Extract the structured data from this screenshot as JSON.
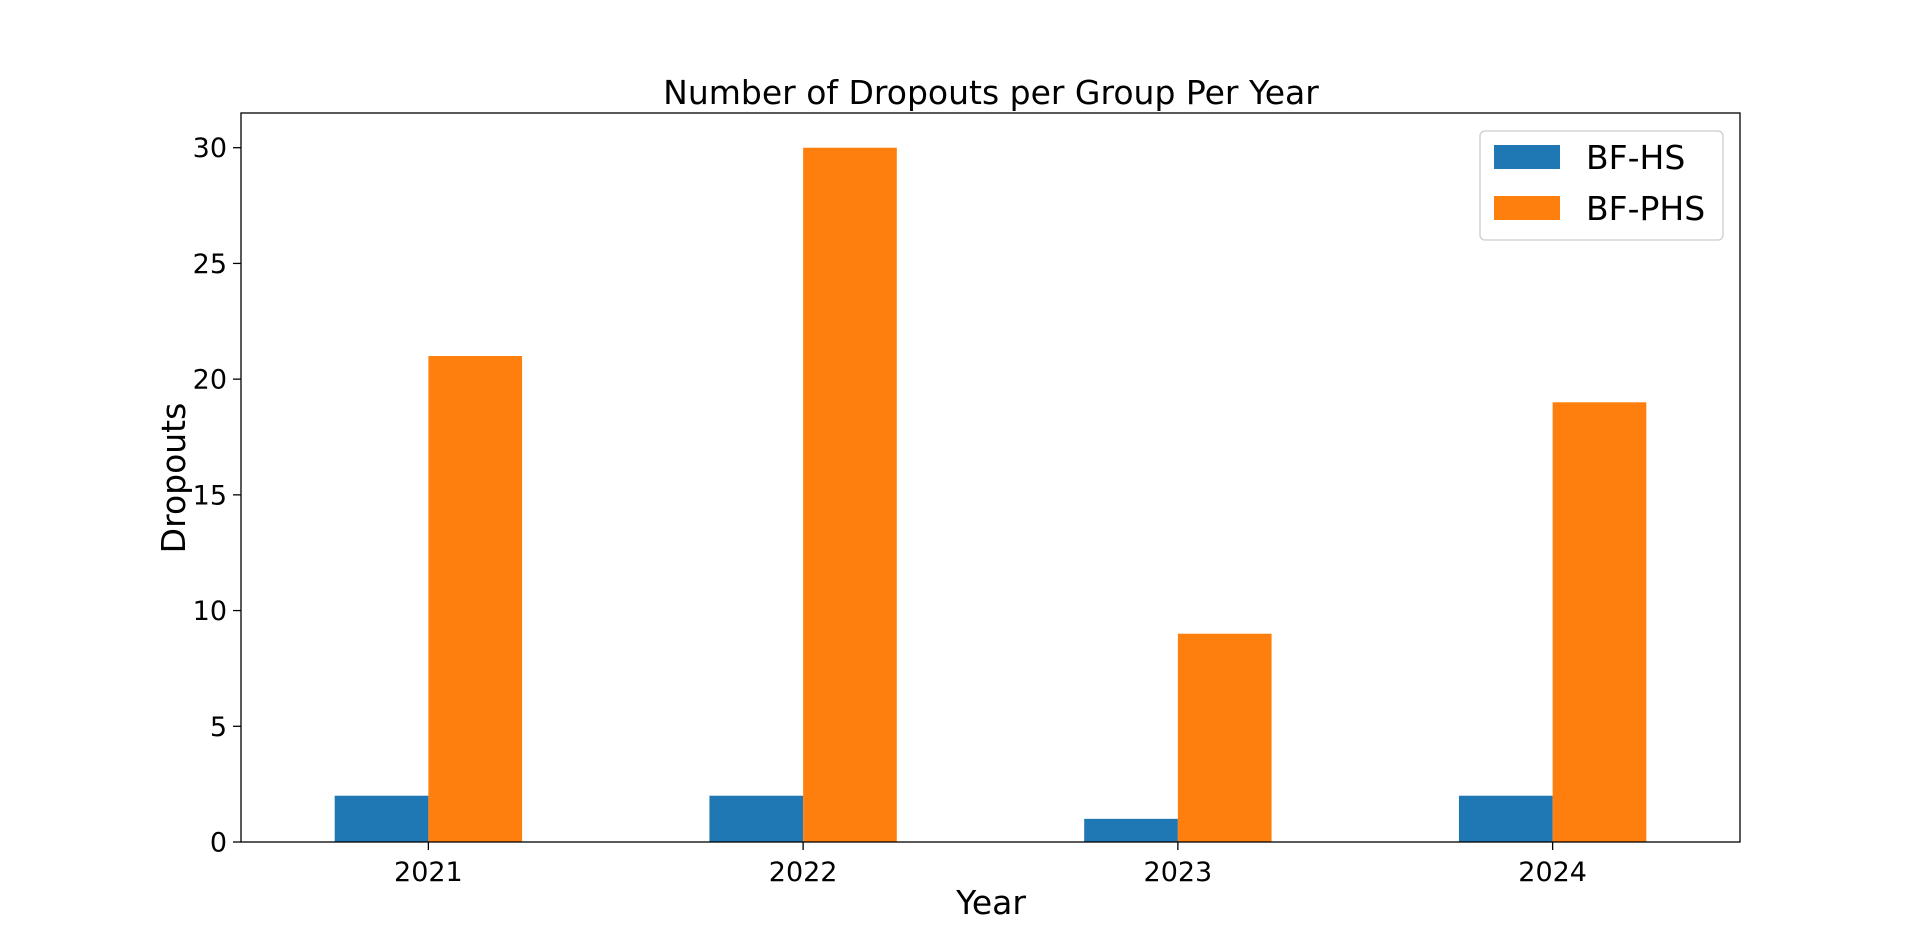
{
  "chart_data": {
    "type": "bar",
    "title": "Number of Dropouts per Group Per Year",
    "xlabel": "Year",
    "ylabel": "Dropouts",
    "categories": [
      "2021",
      "2022",
      "2023",
      "2024"
    ],
    "series": [
      {
        "name": "BF-HS",
        "color": "#1f77b4",
        "values": [
          2,
          2,
          1,
          2
        ]
      },
      {
        "name": "BF-PHS",
        "color": "#ff7f0e",
        "values": [
          21,
          30,
          9,
          19
        ]
      }
    ],
    "ylim": [
      0,
      31.5
    ],
    "yticks": [
      0,
      5,
      10,
      15,
      20,
      25,
      30
    ],
    "grid": false,
    "legend_position": "top-right"
  }
}
